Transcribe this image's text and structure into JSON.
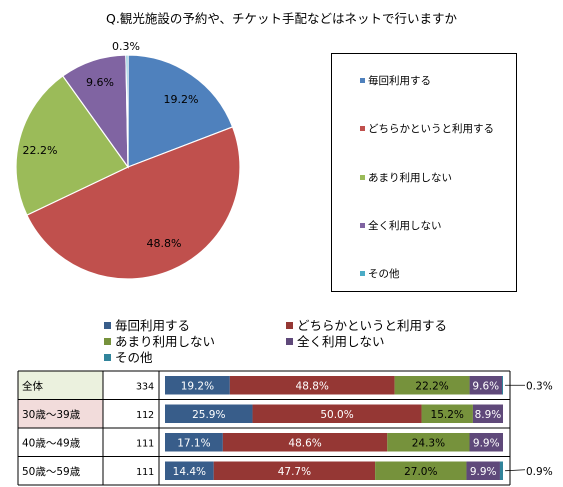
{
  "chart_data": {
    "type": "pie+stacked-bar",
    "title": "Q.観光施設の予約や、チケット手配などはネットで行いますか",
    "categories": [
      "毎回利用する",
      "どちらかというと利用する",
      "あまり利用しない",
      "全く利用しない",
      "その他"
    ],
    "colors": [
      "#4f81bd",
      "#c0504d",
      "#9bbb59",
      "#8064a2",
      "#4bacc6"
    ],
    "bar_colors": [
      "#385d8a",
      "#953734",
      "#76923c",
      "#5f497a",
      "#31849b"
    ],
    "pie": {
      "values": [
        19.2,
        48.8,
        22.2,
        9.6,
        0.3
      ],
      "labels": [
        "19.2%",
        "48.8%",
        "22.2%",
        "9.6%",
        "0.3%"
      ]
    },
    "rows": [
      {
        "label": "全体",
        "n": "334",
        "values": [
          19.2,
          48.8,
          22.2,
          9.6,
          0.3
        ],
        "labels": [
          "19.2%",
          "48.8%",
          "22.2%",
          "9.6%",
          ""
        ],
        "callout": "0.3%",
        "bg": "#ebf1de"
      },
      {
        "label": "30歳～39歳",
        "n": "112",
        "values": [
          25.9,
          50.0,
          15.2,
          8.9,
          0
        ],
        "labels": [
          "25.9%",
          "50.0%",
          "15.2%",
          "8.9%",
          ""
        ],
        "callout": "",
        "bg": "#f2dcdb"
      },
      {
        "label": "40歳～49歳",
        "n": "111",
        "values": [
          17.1,
          48.6,
          24.3,
          9.9,
          0
        ],
        "labels": [
          "17.1%",
          "48.6%",
          "24.3%",
          "9.9%",
          ""
        ],
        "callout": "",
        "bg": "#ffffff"
      },
      {
        "label": "50歳～59歳",
        "n": "111",
        "values": [
          14.4,
          47.7,
          27.0,
          9.9,
          0.9
        ],
        "labels": [
          "14.4%",
          "47.7%",
          "27.0%",
          "9.9%",
          ""
        ],
        "callout": "0.9%",
        "bg": "#ffffff"
      }
    ]
  }
}
